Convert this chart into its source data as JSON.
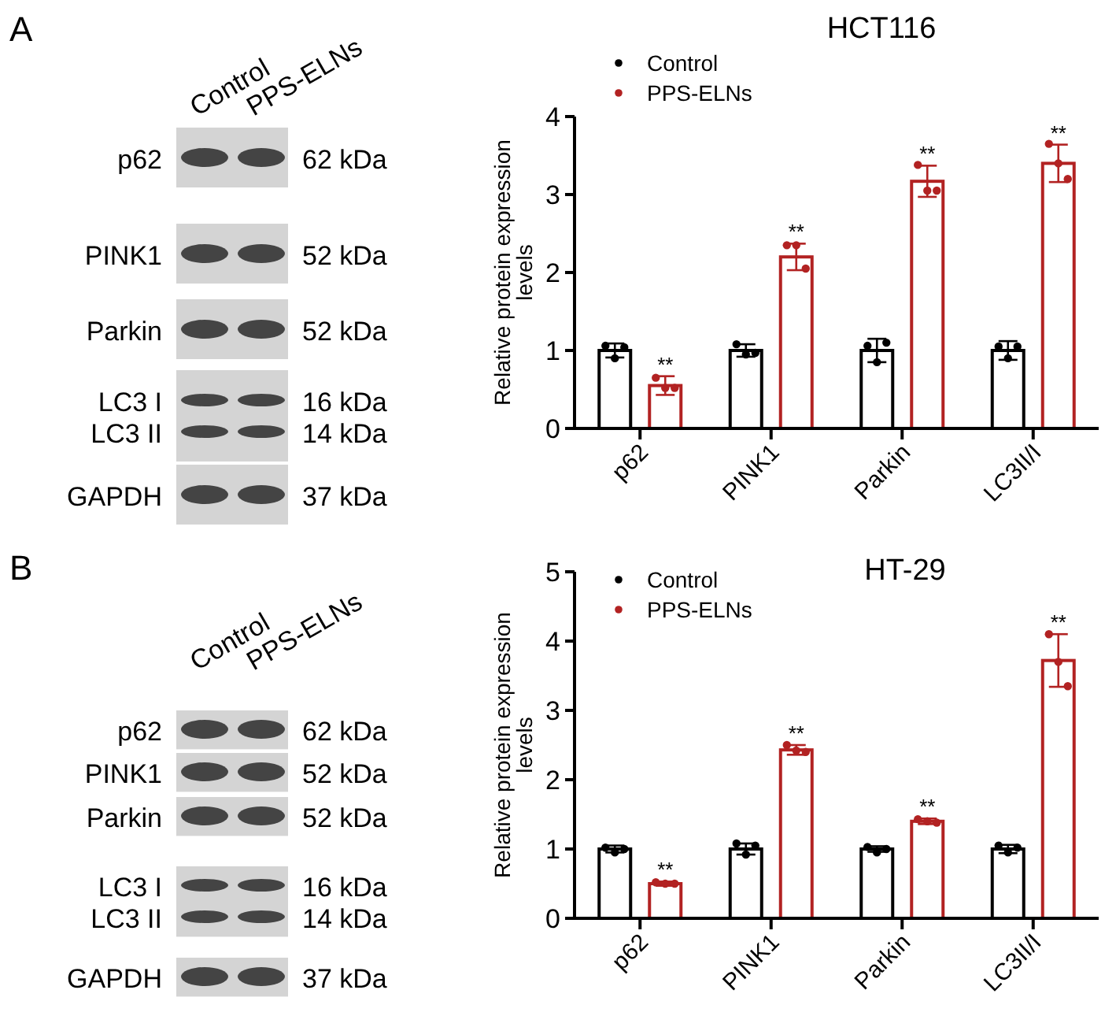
{
  "chart_data": [
    {
      "type": "other",
      "title": "A",
      "annotations": [
        "Control",
        "PPS-ELNs",
        "p62",
        "62 kDa",
        "PINK1",
        "52 kDa",
        "Parkin",
        "52 kDa",
        "LC3 I",
        "16 kDa",
        "LC3 II",
        "14 kDa",
        "GAPDH",
        "37 kDa"
      ]
    },
    {
      "type": "bar",
      "title": "HCT116",
      "ylabel": "Relative protein expression levels",
      "categories": [
        "p62",
        "PINK1",
        "Parkin",
        "LC3II/I"
      ],
      "series": [
        {
          "name": "Control",
          "color": "#000000",
          "values": [
            1.0,
            1.0,
            1.0,
            1.0
          ],
          "errors": [
            0.09,
            0.08,
            0.15,
            0.12
          ]
        },
        {
          "name": "PPS-ELNs",
          "color": "#b22222",
          "values": [
            0.55,
            2.2,
            3.17,
            3.4
          ],
          "errors": [
            0.12,
            0.17,
            0.2,
            0.24
          ]
        },
        {
          "type": "scatter",
          "color": "#000000",
          "x": [
            "p62",
            "p62",
            "p62",
            "PINK1",
            "PINK1",
            "PINK1",
            "Parkin",
            "Parkin",
            "Parkin",
            "LC3II/I",
            "LC3II/I",
            "LC3II/I"
          ],
          "values": [
            1.06,
            0.9,
            1.04,
            1.08,
            0.95,
            0.97,
            1.06,
            0.85,
            1.1,
            1.05,
            0.9,
            1.05
          ]
        },
        {
          "type": "scatter",
          "color": "#b22222",
          "x": [
            "p62",
            "p62",
            "p62",
            "PINK1",
            "PINK1",
            "PINK1",
            "Parkin",
            "Parkin",
            "Parkin",
            "LC3II/I",
            "LC3II/I",
            "LC3II/I"
          ],
          "values": [
            0.65,
            0.52,
            0.52,
            2.35,
            2.35,
            2.05,
            3.38,
            3.05,
            3.05,
            3.65,
            3.4,
            3.2
          ]
        }
      ],
      "ylim": [
        0,
        4
      ],
      "yticks": [
        0,
        1,
        2,
        3,
        4
      ],
      "legend": "top left",
      "annotations": [
        "**",
        "**",
        "**",
        "**"
      ]
    },
    {
      "type": "other",
      "title": "B",
      "annotations": [
        "Control",
        "PPS-ELNs",
        "p62",
        "62 kDa",
        "PINK1",
        "52 kDa",
        "Parkin",
        "52 kDa",
        "LC3 I",
        "16 kDa",
        "LC3 II",
        "14 kDa",
        "GAPDH",
        "37 kDa"
      ]
    },
    {
      "type": "bar",
      "title": "HT-29",
      "ylabel": "Relative protein expression levels",
      "categories": [
        "p62",
        "PINK1",
        "Parkin",
        "LC3II/I"
      ],
      "series": [
        {
          "name": "Control",
          "color": "#000000",
          "values": [
            1.0,
            1.0,
            1.0,
            1.0
          ],
          "errors": [
            0.05,
            0.08,
            0.04,
            0.06
          ]
        },
        {
          "name": "PPS-ELNs",
          "color": "#b22222",
          "values": [
            0.5,
            2.43,
            1.4,
            3.72
          ],
          "errors": [
            0.03,
            0.07,
            0.04,
            0.38
          ]
        },
        {
          "type": "scatter",
          "color": "#000000",
          "x": [
            "p62",
            "p62",
            "p62",
            "PINK1",
            "PINK1",
            "PINK1",
            "Parkin",
            "Parkin",
            "Parkin",
            "LC3II/I",
            "LC3II/I",
            "LC3II/I"
          ],
          "values": [
            1.02,
            0.95,
            1.0,
            1.08,
            0.92,
            1.05,
            1.03,
            0.95,
            1.0,
            1.05,
            0.95,
            1.02
          ]
        },
        {
          "type": "scatter",
          "color": "#b22222",
          "x": [
            "p62",
            "p62",
            "p62",
            "PINK1",
            "PINK1",
            "PINK1",
            "Parkin",
            "Parkin",
            "Parkin",
            "LC3II/I",
            "LC3II/I",
            "LC3II/I"
          ],
          "values": [
            0.52,
            0.5,
            0.5,
            2.5,
            2.42,
            2.4,
            1.43,
            1.4,
            1.38,
            4.1,
            3.7,
            3.35
          ]
        }
      ],
      "ylim": [
        0,
        5
      ],
      "yticks": [
        0,
        1,
        2,
        3,
        4,
        5
      ],
      "legend": "top left",
      "annotations": [
        "**",
        "**",
        "**",
        "**"
      ]
    }
  ]
}
